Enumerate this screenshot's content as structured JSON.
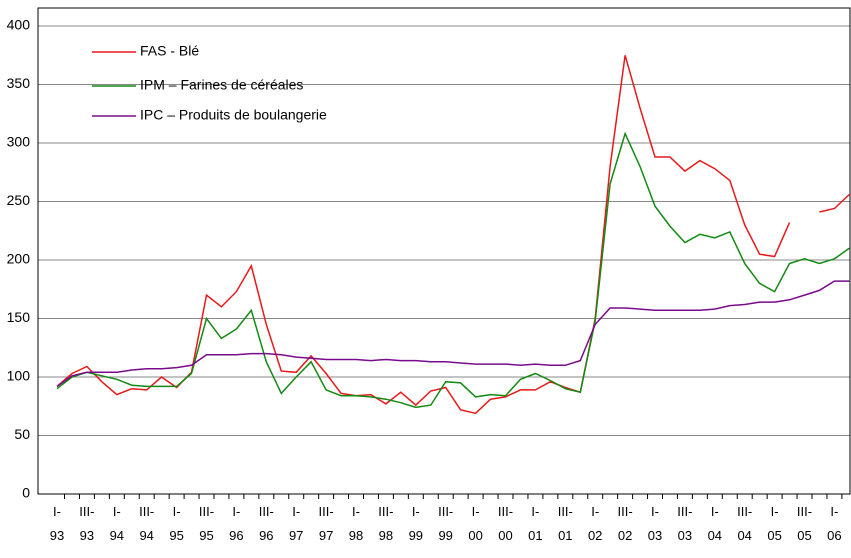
{
  "chart_data": {
    "type": "line",
    "categories": [
      "I- 93",
      null,
      "III- 93",
      null,
      "I- 94",
      null,
      "III- 94",
      null,
      "I- 95",
      null,
      "III- 95",
      null,
      "I- 96",
      null,
      "III- 96",
      null,
      "I- 97",
      null,
      "III- 97",
      null,
      "I- 98",
      null,
      "III- 98",
      null,
      "I- 99",
      null,
      "III- 99",
      null,
      "I- 00",
      null,
      "III- 00",
      null,
      "I- 01",
      null,
      "III- 01",
      null,
      "I- 02",
      null,
      "III- 02",
      null,
      "I- 03",
      null,
      "III- 03",
      null,
      "I- 04",
      null,
      "III- 04",
      null,
      "I- 05",
      null,
      "III- 05",
      null,
      "I- 06",
      null
    ],
    "series": [
      {
        "name": "FAS - Blé",
        "color": "#e8191b",
        "values": [
          92,
          103,
          109,
          96,
          85,
          90,
          89,
          100,
          91,
          104,
          170,
          160,
          173,
          195,
          145,
          105,
          104,
          118,
          103,
          86,
          84,
          85,
          77,
          87,
          76,
          88,
          91,
          72,
          69,
          81,
          83,
          89,
          89,
          96,
          91,
          87,
          150,
          280,
          375,
          330,
          288,
          288,
          276,
          285,
          278,
          268,
          230,
          205,
          203,
          232,
          null,
          241,
          244,
          256
        ]
      },
      {
        "name": "IPM – Farines de céréales",
        "color": "#138a13",
        "values": [
          90,
          100,
          104,
          101,
          98,
          93,
          92,
          92,
          92,
          103,
          150,
          133,
          141,
          157,
          113,
          86,
          100,
          113,
          89,
          84,
          84,
          83,
          81,
          78,
          74,
          76,
          96,
          95,
          83,
          85,
          84,
          98,
          103,
          97,
          90,
          87,
          148,
          265,
          308,
          280,
          246,
          229,
          215,
          222,
          219,
          224,
          197,
          180,
          173,
          197,
          201,
          197,
          201,
          210
        ]
      },
      {
        "name": "IPC – Produits de boulangerie",
        "color": "#7a0a8c",
        "values": [
          92,
          101,
          104,
          104,
          104,
          106,
          107,
          107,
          108,
          110,
          119,
          119,
          119,
          120,
          120,
          119,
          117,
          116,
          115,
          115,
          115,
          114,
          115,
          114,
          114,
          113,
          113,
          112,
          111,
          111,
          111,
          110,
          111,
          110,
          110,
          114,
          145,
          159,
          159,
          158,
          157,
          157,
          157,
          157,
          158,
          161,
          162,
          164,
          164,
          166,
          170,
          174,
          182,
          182
        ]
      }
    ],
    "ylim": [
      0,
      400
    ],
    "yticks": [
      0,
      50,
      100,
      150,
      200,
      250,
      300,
      350,
      400
    ],
    "grid": true
  }
}
